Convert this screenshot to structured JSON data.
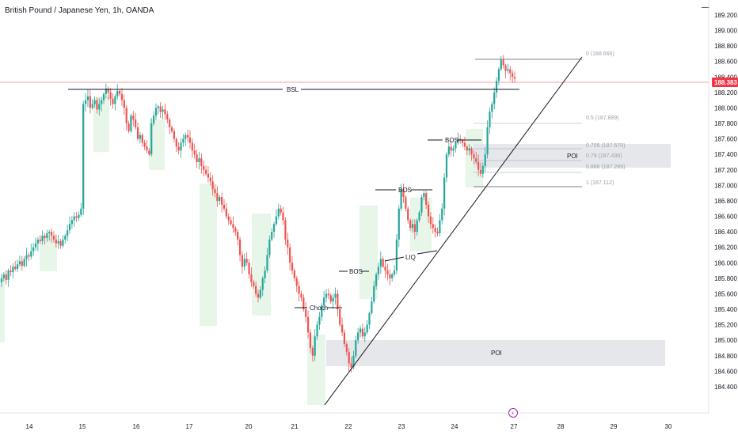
{
  "header": {
    "symbol_title": "British Pound / Japanese Yen, 1h, OANDA",
    "menu_glyph": "—"
  },
  "colors": {
    "up": "#26a69a",
    "down": "#ef5350",
    "zone_green": "#e8f5e9",
    "poi_gray": "#e0e3e8",
    "price_tag": "#f23645",
    "price_line": "#f4a3a3"
  },
  "price_axis": {
    "labels": [
      "189.200",
      "189.000",
      "188.800",
      "188.600",
      "188.400",
      "188.200",
      "188.000",
      "187.800",
      "187.600",
      "187.400",
      "187.200",
      "187.000",
      "186.800",
      "186.600",
      "186.400",
      "186.200",
      "186.000",
      "185.800",
      "185.600",
      "185.400",
      "185.200",
      "185.000",
      "184.800",
      "184.600",
      "184.400"
    ],
    "current_price": "188.383"
  },
  "time_axis": {
    "labels": [
      "14",
      "15",
      "16",
      "17",
      "20",
      "21",
      "22",
      "23",
      "24",
      "27",
      "28",
      "29",
      "30"
    ]
  },
  "annotations": {
    "bsl": "BSL",
    "choch": "Choch",
    "bos1": "BOS",
    "bos2": "BOS",
    "bos3": "BOS",
    "liq": "LIQ",
    "poi_upper": "POI",
    "poi_lower": "POI",
    "event_icon": "⚡"
  },
  "fib": {
    "f0": "0 (188.666)",
    "f05": "0.5 (187.889)",
    "f0705": "0.705 (187.570)",
    "f079": "0.79 (187.438)",
    "f0886": "0.886 (187.289)",
    "f1": "1 (187.112)"
  },
  "chart_data": {
    "type": "candlestick",
    "title": "British Pound / Japanese Yen, 1h, OANDA",
    "ylim": [
      184.4,
      189.2
    ],
    "x_tick_labels": [
      "14",
      "15",
      "16",
      "17",
      "20",
      "21",
      "22",
      "23",
      "24",
      "27",
      "28",
      "29",
      "30"
    ],
    "closes": [
      185.8,
      185.85,
      185.78,
      185.9,
      185.88,
      185.95,
      185.92,
      185.98,
      186.02,
      185.96,
      186.05,
      186.1,
      186.08,
      186.15,
      186.2,
      186.25,
      186.3,
      186.28,
      186.35,
      186.32,
      186.38,
      186.4,
      186.35,
      186.3,
      186.25,
      186.28,
      186.22,
      186.3,
      186.35,
      186.42,
      186.5,
      186.55,
      186.6,
      186.58,
      186.62,
      186.7,
      188.05,
      188.1,
      188.15,
      188.0,
      188.05,
      188.1,
      187.98,
      188.05,
      188.1,
      188.18,
      188.25,
      188.2,
      188.12,
      188.05,
      188.15,
      188.22,
      188.18,
      188.1,
      188.0,
      187.8,
      187.7,
      187.9,
      187.85,
      187.75,
      187.6,
      187.65,
      187.55,
      187.5,
      187.45,
      187.4,
      187.8,
      187.9,
      188.0,
      188.02,
      187.95,
      187.98,
      187.92,
      187.85,
      187.75,
      187.7,
      187.6,
      187.5,
      187.45,
      187.55,
      187.6,
      187.65,
      187.62,
      187.55,
      187.45,
      187.4,
      187.3,
      187.35,
      187.25,
      187.2,
      187.15,
      187.1,
      187.05,
      186.95,
      186.9,
      186.8,
      186.85,
      186.75,
      186.7,
      186.6,
      186.55,
      186.5,
      186.45,
      186.4,
      186.3,
      186.1,
      185.95,
      186.05,
      186.0,
      185.85,
      185.75,
      185.7,
      185.6,
      185.55,
      185.65,
      185.8,
      185.9,
      186.1,
      186.3,
      186.4,
      186.5,
      186.6,
      186.7,
      186.65,
      186.55,
      186.3,
      186.2,
      186.0,
      185.9,
      185.8,
      185.7,
      185.6,
      185.55,
      185.4,
      185.3,
      185.1,
      184.9,
      184.8,
      185.05,
      185.2,
      185.3,
      185.45,
      185.55,
      185.6,
      185.58,
      185.5,
      185.55,
      185.6,
      185.4,
      185.2,
      185.1,
      184.95,
      184.85,
      184.7,
      184.65,
      184.8,
      185.0,
      185.1,
      185.15,
      185.05,
      185.1,
      185.2,
      185.35,
      185.5,
      185.7,
      185.85,
      185.95,
      186.05,
      185.95,
      185.9,
      185.85,
      185.8,
      185.85,
      185.9,
      186.3,
      186.7,
      186.95,
      186.85,
      186.7,
      186.55,
      186.45,
      186.5,
      186.4,
      186.55,
      186.65,
      186.85,
      186.9,
      186.75,
      186.6,
      186.5,
      186.45,
      186.4,
      186.38,
      186.55,
      186.7,
      187.1,
      187.4,
      187.5,
      187.45,
      187.48,
      187.55,
      187.6,
      187.58,
      187.55,
      187.5,
      187.45,
      187.48,
      187.4,
      187.35,
      187.3,
      187.2,
      187.15,
      187.25,
      187.4,
      187.75,
      187.95,
      188.05,
      188.2,
      188.35,
      188.5,
      188.62,
      188.55,
      188.48,
      188.5,
      188.45,
      188.4,
      188.38
    ]
  }
}
